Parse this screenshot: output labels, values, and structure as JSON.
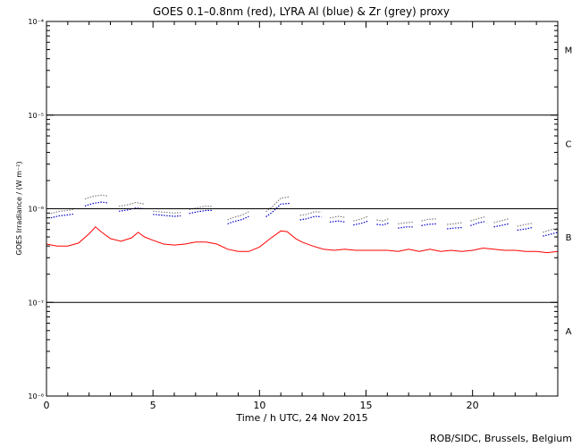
{
  "chart_data": {
    "type": "line",
    "title": "GOES 0.1–0.8nm (red), LYRA Al (blue) & Zr (grey) proxy",
    "xlabel": "Time / h UTC, 24 Nov 2015",
    "ylabel": "GOES Irradiance / (W m⁻²)",
    "xlim": [
      0,
      24
    ],
    "x_ticks": [
      0,
      5,
      10,
      15,
      20
    ],
    "ylim": [
      1e-08,
      0.0001
    ],
    "y_scale": "log",
    "y_tick_labels": [
      {
        "value": 0.0001,
        "label": "10⁻⁴"
      },
      {
        "value": 1e-05,
        "label": "10⁻⁵"
      },
      {
        "value": 1e-06,
        "label": "10⁻⁶"
      },
      {
        "value": 1e-07,
        "label": "10⁻⁷"
      },
      {
        "value": 1e-08,
        "label": "10⁻⁸"
      }
    ],
    "reference_lines": [
      1e-05,
      1e-06,
      1e-07
    ],
    "flare_classes": [
      {
        "label": "M",
        "value": 5e-05
      },
      {
        "label": "C",
        "value": 5e-06
      },
      {
        "label": "B",
        "value": 5e-07
      },
      {
        "label": "A",
        "value": 5e-08
      }
    ],
    "grid": false,
    "series": [
      {
        "color": "#ff0000",
        "style": "line",
        "x": [
          0.0,
          0.5,
          1.0,
          1.5,
          2.0,
          2.3,
          2.6,
          3.0,
          3.5,
          4.0,
          4.3,
          4.6,
          5.0,
          5.5,
          6.0,
          6.5,
          7.0,
          7.5,
          8.0,
          8.5,
          9.0,
          9.5,
          10.0,
          10.5,
          11.0,
          11.3,
          11.7,
          12.0,
          12.5,
          13.0,
          13.5,
          14.0,
          14.5,
          15.0,
          15.5,
          16.0,
          16.5,
          17.0,
          17.5,
          18.0,
          18.5,
          19.0,
          19.5,
          20.0,
          20.5,
          21.0,
          21.5,
          22.0,
          22.5,
          23.0,
          23.5,
          24.0
        ],
        "y": [
          4.2e-07,
          4e-07,
          4e-07,
          4.3e-07,
          5.4e-07,
          6.4e-07,
          5.6e-07,
          4.8e-07,
          4.5e-07,
          4.9e-07,
          5.6e-07,
          5e-07,
          4.6e-07,
          4.2e-07,
          4.1e-07,
          4.2e-07,
          4.4e-07,
          4.4e-07,
          4.2e-07,
          3.7e-07,
          3.5e-07,
          3.5e-07,
          3.9e-07,
          4.8e-07,
          5.8e-07,
          5.7e-07,
          4.8e-07,
          4.4e-07,
          4e-07,
          3.7e-07,
          3.6e-07,
          3.7e-07,
          3.6e-07,
          3.6e-07,
          3.6e-07,
          3.6e-07,
          3.5e-07,
          3.7e-07,
          3.5e-07,
          3.7e-07,
          3.5e-07,
          3.6e-07,
          3.5e-07,
          3.6e-07,
          3.8e-07,
          3.7e-07,
          3.6e-07,
          3.6e-07,
          3.5e-07,
          3.5e-07,
          3.4e-07,
          3.5e-07
        ]
      },
      {
        "color": "#0000cc",
        "style": "segments",
        "segments": [
          {
            "x": [
              0.2,
              0.6,
              1.0,
              1.3
            ],
            "y": [
              8e-07,
              8.4e-07,
              8.6e-07,
              8.8e-07
            ]
          },
          {
            "x": [
              1.8,
              2.2,
              2.6,
              2.9
            ],
            "y": [
              1.07e-06,
              1.14e-06,
              1.18e-06,
              1.15e-06
            ]
          },
          {
            "x": [
              3.4,
              3.8,
              4.2,
              4.6
            ],
            "y": [
              9.4e-07,
              9.7e-07,
              1.02e-06,
              1e-06
            ]
          },
          {
            "x": [
              5.0,
              5.5,
              6.0,
              6.3
            ],
            "y": [
              8.7e-07,
              8.5e-07,
              8.3e-07,
              8.4e-07
            ]
          },
          {
            "x": [
              6.7,
              7.1,
              7.5,
              7.8
            ],
            "y": [
              8.9e-07,
              9.3e-07,
              9.6e-07,
              9.6e-07
            ]
          },
          {
            "x": [
              8.5,
              8.8,
              9.2,
              9.5
            ],
            "y": [
              6.9e-07,
              7.3e-07,
              7.7e-07,
              8.3e-07
            ]
          },
          {
            "x": [
              10.3,
              10.6,
              11.0,
              11.4
            ],
            "y": [
              8.2e-07,
              9.2e-07,
              1.12e-06,
              1.14e-06
            ]
          },
          {
            "x": [
              11.9,
              12.2,
              12.6,
              12.9
            ],
            "y": [
              7.6e-07,
              7.8e-07,
              8.3e-07,
              8.2e-07
            ]
          },
          {
            "x": [
              13.3,
              13.7,
              14.0
            ],
            "y": [
              7.2e-07,
              7.4e-07,
              7.2e-07
            ]
          },
          {
            "x": [
              14.4,
              14.8,
              15.1
            ],
            "y": [
              6.7e-07,
              7e-07,
              7.4e-07
            ]
          },
          {
            "x": [
              15.5,
              15.8,
              16.1
            ],
            "y": [
              6.8e-07,
              6.7e-07,
              7.1e-07
            ]
          },
          {
            "x": [
              16.5,
              16.9,
              17.2
            ],
            "y": [
              6.2e-07,
              6.4e-07,
              6.4e-07
            ]
          },
          {
            "x": [
              17.6,
              17.9,
              18.3
            ],
            "y": [
              6.6e-07,
              6.8e-07,
              6.9e-07
            ]
          },
          {
            "x": [
              18.8,
              19.1,
              19.5
            ],
            "y": [
              6.1e-07,
              6.2e-07,
              6.3e-07
            ]
          },
          {
            "x": [
              19.9,
              20.3,
              20.6
            ],
            "y": [
              6.6e-07,
              7.1e-07,
              7.3e-07
            ]
          },
          {
            "x": [
              21.0,
              21.3,
              21.7
            ],
            "y": [
              6.4e-07,
              6.6e-07,
              6.9e-07
            ]
          },
          {
            "x": [
              22.1,
              22.5,
              22.8
            ],
            "y": [
              5.9e-07,
              6.1e-07,
              6.3e-07
            ]
          },
          {
            "x": [
              23.3,
              23.6,
              24.0
            ],
            "y": [
              5.1e-07,
              5.3e-07,
              5.6e-07
            ]
          }
        ]
      },
      {
        "color": "#808080",
        "style": "segments",
        "segments": [
          {
            "x": [
              0.2,
              0.6,
              1.0,
              1.3
            ],
            "y": [
              8.9e-07,
              9.4e-07,
              9.6e-07,
              9.9e-07
            ]
          },
          {
            "x": [
              1.8,
              2.2,
              2.6,
              2.9
            ],
            "y": [
              1.27e-06,
              1.36e-06,
              1.4e-06,
              1.36e-06
            ]
          },
          {
            "x": [
              3.4,
              3.8,
              4.2,
              4.6
            ],
            "y": [
              1.06e-06,
              1.1e-06,
              1.17e-06,
              1.12e-06
            ]
          },
          {
            "x": [
              5.0,
              5.5,
              6.0,
              6.3
            ],
            "y": [
              9.4e-07,
              9.2e-07,
              9e-07,
              9.1e-07
            ]
          },
          {
            "x": [
              6.7,
              7.1,
              7.5,
              7.8
            ],
            "y": [
              9.8e-07,
              1.03e-06,
              1.07e-06,
              1.06e-06
            ]
          },
          {
            "x": [
              8.5,
              8.8,
              9.2,
              9.5
            ],
            "y": [
              7.6e-07,
              8.1e-07,
              8.6e-07,
              9.3e-07
            ]
          },
          {
            "x": [
              10.3,
              10.6,
              11.0,
              11.4
            ],
            "y": [
              9.3e-07,
              1.05e-06,
              1.3e-06,
              1.34e-06
            ]
          },
          {
            "x": [
              11.9,
              12.2,
              12.6,
              12.9
            ],
            "y": [
              8.5e-07,
              8.7e-07,
              9.3e-07,
              9.2e-07
            ]
          },
          {
            "x": [
              13.3,
              13.7,
              14.0
            ],
            "y": [
              8e-07,
              8.3e-07,
              8.1e-07
            ]
          },
          {
            "x": [
              14.4,
              14.8,
              15.1
            ],
            "y": [
              7.4e-07,
              7.8e-07,
              8.3e-07
            ]
          },
          {
            "x": [
              15.5,
              15.8,
              16.1
            ],
            "y": [
              7.6e-07,
              7.4e-07,
              7.9e-07
            ]
          },
          {
            "x": [
              16.5,
              16.9,
              17.2
            ],
            "y": [
              6.9e-07,
              7.1e-07,
              7.2e-07
            ]
          },
          {
            "x": [
              17.6,
              17.9,
              18.3
            ],
            "y": [
              7.4e-07,
              7.7e-07,
              7.8e-07
            ]
          },
          {
            "x": [
              18.8,
              19.1,
              19.5
            ],
            "y": [
              6.8e-07,
              6.9e-07,
              7.1e-07
            ]
          },
          {
            "x": [
              19.9,
              20.3,
              20.6
            ],
            "y": [
              7.4e-07,
              7.9e-07,
              8.2e-07
            ]
          },
          {
            "x": [
              21.0,
              21.3,
              21.7
            ],
            "y": [
              7.1e-07,
              7.4e-07,
              7.8e-07
            ]
          },
          {
            "x": [
              22.1,
              22.5,
              22.8
            ],
            "y": [
              6.5e-07,
              6.8e-07,
              7e-07
            ]
          },
          {
            "x": [
              23.3,
              23.6,
              24.0
            ],
            "y": [
              5.6e-07,
              5.9e-07,
              6.2e-07
            ]
          }
        ]
      }
    ]
  },
  "footer": "ROB/SIDC, Brussels, Belgium"
}
